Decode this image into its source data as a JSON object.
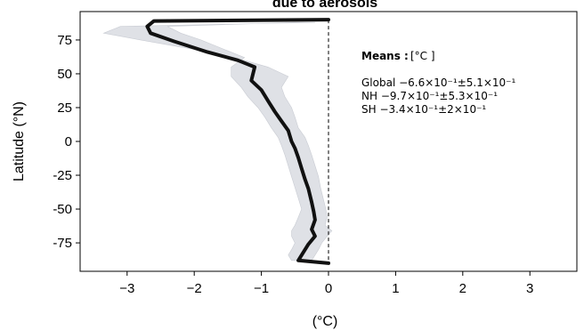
{
  "chart_data": {
    "type": "line",
    "title": "due to aerosols",
    "xlabel": "(°C)",
    "ylabel": "Latitude (°N)",
    "xlim": [
      -3.7,
      3.7
    ],
    "ylim": [
      -96,
      96
    ],
    "xticks": [
      -3,
      -2,
      -1,
      0,
      1,
      2,
      3
    ],
    "xtick_labels": [
      "−3",
      "−2",
      "−1",
      "0",
      "1",
      "2",
      "3"
    ],
    "yticks": [
      75,
      50,
      25,
      0,
      -25,
      -50,
      -75
    ],
    "ytick_labels": [
      "75",
      "50",
      "25",
      "0",
      "-25",
      "-50",
      "-75"
    ],
    "grid": false,
    "legend": "none",
    "series": [
      {
        "x": [
          0.0,
          -2.6,
          -2.7,
          -2.65,
          -2.3,
          -1.8,
          -1.35,
          -1.1,
          -1.15,
          -1.0,
          -0.9,
          -0.8,
          -0.7,
          -0.6,
          -0.55,
          -0.5,
          -0.45,
          -0.4,
          -0.35,
          -0.3,
          -0.25,
          -0.22,
          -0.2,
          -0.25,
          -0.2,
          -0.3,
          -0.35,
          -0.4,
          -0.45,
          0.0
        ],
        "y": [
          90,
          89,
          85,
          80,
          74,
          66,
          60,
          55,
          45,
          38,
          30,
          22,
          15,
          8,
          0,
          -5,
          -12,
          -20,
          -28,
          -35,
          -45,
          -52,
          -58,
          -65,
          -70,
          -76,
          -80,
          -84,
          -88,
          -90
        ],
        "color": "#111111"
      }
    ],
    "shaded_band": {
      "upper_x": [
        -0.2,
        -3.1,
        -3.35,
        -2.8,
        -2.0,
        -1.4,
        -0.9,
        -0.6,
        -0.7,
        -0.65,
        -0.55,
        -0.5,
        -0.45,
        -0.35,
        -0.3,
        -0.25,
        -0.2,
        -0.15,
        -0.12,
        -0.08,
        -0.04,
        -0.02,
        -0.05,
        0.05,
        -0.02,
        -0.1,
        -0.15,
        -0.2,
        -0.25
      ],
      "lower_x": [
        -0.5,
        -2.4,
        -2.2,
        -1.9,
        -1.55,
        -1.25,
        -1.45,
        -1.45,
        -1.3,
        -1.2,
        -1.05,
        -0.95,
        -0.85,
        -0.75,
        -0.7,
        -0.65,
        -0.6,
        -0.55,
        -0.5,
        -0.45,
        -0.4,
        -0.45,
        -0.5,
        -0.55,
        -0.55,
        -0.5,
        -0.55,
        -0.6,
        -0.55
      ],
      "y": [
        88,
        85,
        80,
        75,
        68,
        62,
        55,
        48,
        40,
        33,
        25,
        18,
        10,
        3,
        -3,
        -10,
        -18,
        -26,
        -34,
        -42,
        -50,
        -56,
        -62,
        -66,
        -70,
        -75,
        -80,
        -84,
        -88
      ],
      "color": "#dfe1e6"
    },
    "zero_line": {
      "x": 0,
      "style": "dashed"
    }
  },
  "annotation": {
    "means_label": "Means :",
    "unit": "[°C ]",
    "lines": [
      "Global −6.6×10⁻¹±5.1×10⁻¹",
      "NH −9.7×10⁻¹±5.3×10⁻¹",
      "SH −3.4×10⁻¹±2×10⁻¹"
    ]
  }
}
